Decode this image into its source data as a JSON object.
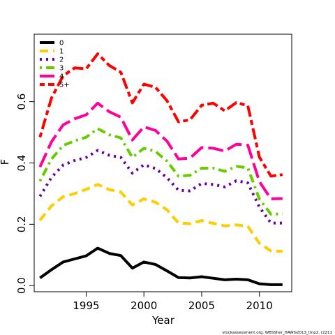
{
  "chart_data": {
    "type": "line",
    "title": "",
    "xlabel": "Year",
    "ylabel": "F",
    "xlim": [
      1990.5,
      2012.8
    ],
    "ylim": [
      -0.02,
      0.82
    ],
    "xticks": [
      1995,
      2000,
      2005,
      2010
    ],
    "yticks": [
      0.0,
      0.2,
      0.4,
      0.6
    ],
    "ytick_labels": [
      "0.0",
      "0.2",
      "0.4",
      "0.6"
    ],
    "grid": false,
    "legend_position": "top-left",
    "x": [
      1991,
      1992,
      1993,
      1994,
      1995,
      1996,
      1997,
      1998,
      1999,
      2000,
      2001,
      2002,
      2003,
      2004,
      2005,
      2006,
      2007,
      2008,
      2009,
      2010,
      2011,
      2012
    ],
    "series": [
      {
        "name": "0",
        "color": "#000000",
        "dash": "solid",
        "values": [
          0.025,
          0.052,
          0.077,
          0.087,
          0.097,
          0.122,
          0.105,
          0.098,
          0.057,
          0.077,
          0.069,
          0.048,
          0.026,
          0.025,
          0.029,
          0.024,
          0.019,
          0.021,
          0.019,
          0.006,
          0.003,
          0.003
        ]
      },
      {
        "name": "1",
        "color": "#FFCC00",
        "dash": "dashed",
        "values": [
          0.213,
          0.26,
          0.29,
          0.3,
          0.314,
          0.33,
          0.313,
          0.305,
          0.263,
          0.283,
          0.272,
          0.247,
          0.204,
          0.202,
          0.212,
          0.203,
          0.195,
          0.198,
          0.193,
          0.138,
          0.113,
          0.112
        ]
      },
      {
        "name": "2",
        "color": "#660099",
        "dash": "dotted",
        "values": [
          0.291,
          0.353,
          0.393,
          0.408,
          0.418,
          0.441,
          0.425,
          0.418,
          0.367,
          0.394,
          0.382,
          0.352,
          0.311,
          0.309,
          0.333,
          0.33,
          0.322,
          0.342,
          0.335,
          0.256,
          0.204,
          0.204
        ]
      },
      {
        "name": "3",
        "color": "#66CC00",
        "dash": "dotdash",
        "values": [
          0.341,
          0.413,
          0.457,
          0.472,
          0.484,
          0.512,
          0.492,
          0.482,
          0.418,
          0.448,
          0.438,
          0.406,
          0.357,
          0.36,
          0.383,
          0.383,
          0.373,
          0.389,
          0.384,
          0.282,
          0.233,
          0.234
        ]
      },
      {
        "name": "4",
        "color": "#FF0099",
        "dash": "longdash",
        "values": [
          0.387,
          0.469,
          0.524,
          0.544,
          0.557,
          0.595,
          0.567,
          0.549,
          0.475,
          0.518,
          0.506,
          0.471,
          0.413,
          0.416,
          0.45,
          0.448,
          0.439,
          0.461,
          0.458,
          0.339,
          0.283,
          0.284
        ]
      },
      {
        "name": "5+",
        "color": "#FF0000",
        "dash": "twodash",
        "values": [
          0.484,
          0.612,
          0.684,
          0.71,
          0.707,
          0.756,
          0.718,
          0.696,
          0.596,
          0.657,
          0.647,
          0.603,
          0.534,
          0.541,
          0.588,
          0.595,
          0.57,
          0.597,
          0.587,
          0.419,
          0.357,
          0.362
        ]
      }
    ]
  },
  "credit": "stockassessment.org, WBSSher_HAWG2013_tmp2, r2211"
}
